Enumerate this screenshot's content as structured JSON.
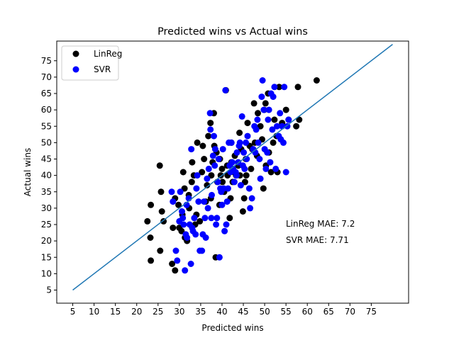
{
  "chart_data": {
    "type": "scatter",
    "title": "Predicted wins vs Actual wins",
    "xlabel": "Predicted wins",
    "ylabel": "Actual wins",
    "xlim": [
      1.25,
      83.75
    ],
    "ylim": [
      1.0,
      81.0
    ],
    "xticks": [
      5,
      10,
      15,
      20,
      25,
      30,
      35,
      40,
      45,
      50,
      55,
      60,
      65,
      70,
      75
    ],
    "yticks": [
      5,
      10,
      15,
      20,
      25,
      30,
      35,
      40,
      45,
      50,
      55,
      60,
      65,
      70,
      75
    ],
    "legend": {
      "position": "top-left",
      "entries": [
        "LinReg",
        "SVR"
      ]
    },
    "reference_line": {
      "x": [
        5,
        80
      ],
      "y": [
        5,
        80
      ],
      "color": "#1f77b4"
    },
    "annotations": [
      "LinReg MAE: 7.2",
      "SVR MAE: 7.71"
    ],
    "series": [
      {
        "name": "LinReg",
        "color": "#000000",
        "points": [
          [
            22.5,
            26
          ],
          [
            23.3,
            31
          ],
          [
            23.2,
            21
          ],
          [
            23.3,
            14
          ],
          [
            25.4,
            43
          ],
          [
            25.7,
            35
          ],
          [
            25.9,
            29
          ],
          [
            25.5,
            17
          ],
          [
            26.3,
            26
          ],
          [
            28.5,
            24
          ],
          [
            29,
            11
          ],
          [
            28.3,
            13
          ],
          [
            29,
            33
          ],
          [
            29.8,
            31
          ],
          [
            30,
            24
          ],
          [
            30.5,
            23
          ],
          [
            30.7,
            28
          ],
          [
            30.9,
            41
          ],
          [
            31.2,
            36
          ],
          [
            31.3,
            21
          ],
          [
            31.8,
            20
          ],
          [
            32.2,
            34
          ],
          [
            32.3,
            30
          ],
          [
            32.9,
            38
          ],
          [
            33,
            44
          ],
          [
            33.4,
            40
          ],
          [
            33.7,
            25
          ],
          [
            34,
            28
          ],
          [
            34.2,
            50
          ],
          [
            34.8,
            26
          ],
          [
            35.3,
            41
          ],
          [
            35.5,
            49
          ],
          [
            35.8,
            45
          ],
          [
            36.2,
            32
          ],
          [
            36.5,
            37
          ],
          [
            36.8,
            52
          ],
          [
            37.3,
            56
          ],
          [
            37.4,
            33
          ],
          [
            37.5,
            40
          ],
          [
            37.8,
            44
          ],
          [
            38.1,
            59
          ],
          [
            38.2,
            49
          ],
          [
            38.5,
            15
          ],
          [
            38.7,
            47
          ],
          [
            38.9,
            38
          ],
          [
            39.4,
            31
          ],
          [
            39.5,
            45
          ],
          [
            39.7,
            40
          ],
          [
            40,
            42
          ],
          [
            40.1,
            38
          ],
          [
            40.5,
            35
          ],
          [
            40.9,
            66
          ],
          [
            41.2,
            43
          ],
          [
            41.3,
            40
          ],
          [
            41.8,
            27
          ],
          [
            42,
            33
          ],
          [
            42.2,
            50
          ],
          [
            42.2,
            44
          ],
          [
            42.5,
            38
          ],
          [
            42.8,
            41
          ],
          [
            43,
            46
          ],
          [
            43.3,
            40
          ],
          [
            43.8,
            43
          ],
          [
            44.1,
            53
          ],
          [
            44.2,
            40
          ],
          [
            44.5,
            48
          ],
          [
            44.9,
            29
          ],
          [
            45.2,
            33
          ],
          [
            45.4,
            38
          ],
          [
            45.6,
            45
          ],
          [
            45.7,
            40
          ],
          [
            46,
            56
          ],
          [
            46.5,
            49
          ],
          [
            46.8,
            42
          ],
          [
            47.1,
            48
          ],
          [
            47.5,
            62
          ],
          [
            47.7,
            50
          ],
          [
            48.2,
            46
          ],
          [
            48.4,
            59
          ],
          [
            49,
            55
          ],
          [
            49.4,
            51
          ],
          [
            49.7,
            36
          ],
          [
            49.9,
            60
          ],
          [
            50.2,
            62
          ],
          [
            50.3,
            43
          ],
          [
            50.8,
            65
          ],
          [
            51,
            47
          ],
          [
            51.5,
            41
          ],
          [
            52,
            50
          ],
          [
            52.3,
            57
          ],
          [
            52.8,
            52
          ],
          [
            53,
            41
          ],
          [
            53.4,
            67
          ],
          [
            54.1,
            56
          ],
          [
            55,
            60
          ],
          [
            55.6,
            57
          ],
          [
            57.4,
            55
          ],
          [
            57.8,
            67
          ],
          [
            58.1,
            57
          ],
          [
            62.2,
            69
          ]
        ]
      },
      {
        "name": "SVR",
        "color": "#0000ff",
        "points": [
          [
            28.2,
            35
          ],
          [
            28.5,
            32
          ],
          [
            29.2,
            17
          ],
          [
            29.5,
            14
          ],
          [
            30,
            26
          ],
          [
            30.2,
            35
          ],
          [
            30.6,
            29
          ],
          [
            30.8,
            27
          ],
          [
            31,
            25
          ],
          [
            31.3,
            11
          ],
          [
            31.5,
            22
          ],
          [
            31.7,
            31
          ],
          [
            31.8,
            21
          ],
          [
            32.2,
            33
          ],
          [
            32.4,
            25
          ],
          [
            32.7,
            13
          ],
          [
            32.8,
            48
          ],
          [
            33,
            24
          ],
          [
            33.2,
            23
          ],
          [
            33.5,
            27
          ],
          [
            33.8,
            22
          ],
          [
            34,
            36
          ],
          [
            34.2,
            40
          ],
          [
            34.5,
            32
          ],
          [
            34.8,
            17
          ],
          [
            35.3,
            17
          ],
          [
            35.5,
            22
          ],
          [
            35.8,
            32
          ],
          [
            36,
            27
          ],
          [
            36.2,
            21
          ],
          [
            36.5,
            39
          ],
          [
            36.7,
            30
          ],
          [
            36.9,
            42
          ],
          [
            37.2,
            59
          ],
          [
            37.3,
            54
          ],
          [
            37.5,
            27
          ],
          [
            37.6,
            34
          ],
          [
            37.9,
            46
          ],
          [
            38.1,
            52
          ],
          [
            38.3,
            43
          ],
          [
            38.4,
            48
          ],
          [
            38.6,
            25
          ],
          [
            38.8,
            27
          ],
          [
            39,
            38
          ],
          [
            39.2,
            45
          ],
          [
            39.4,
            15
          ],
          [
            39.6,
            36
          ],
          [
            39.8,
            35
          ],
          [
            40,
            31
          ],
          [
            40.2,
            48
          ],
          [
            40.4,
            36
          ],
          [
            40.6,
            23
          ],
          [
            40.8,
            66
          ],
          [
            41,
            25
          ],
          [
            41.2,
            32
          ],
          [
            41.4,
            36
          ],
          [
            41.6,
            50
          ],
          [
            41.8,
            43
          ],
          [
            42,
            41
          ],
          [
            42.2,
            50
          ],
          [
            42.4,
            44
          ],
          [
            42.6,
            42
          ],
          [
            42.9,
            38
          ],
          [
            43.2,
            41
          ],
          [
            43.4,
            40
          ],
          [
            43.5,
            47
          ],
          [
            43.8,
            44
          ],
          [
            44,
            49
          ],
          [
            44.2,
            50
          ],
          [
            44.4,
            37
          ],
          [
            44.7,
            58
          ],
          [
            44.9,
            43
          ],
          [
            45.1,
            47
          ],
          [
            45.3,
            42
          ],
          [
            45.6,
            50
          ],
          [
            45.8,
            45
          ],
          [
            46,
            52
          ],
          [
            46.4,
            36
          ],
          [
            46.6,
            30
          ],
          [
            47,
            33
          ],
          [
            47.3,
            48
          ],
          [
            47.6,
            55
          ],
          [
            47.8,
            47
          ],
          [
            48,
            54
          ],
          [
            48.3,
            57
          ],
          [
            48.5,
            50
          ],
          [
            48.8,
            45
          ],
          [
            49,
            39
          ],
          [
            49.3,
            64
          ],
          [
            49.5,
            69
          ],
          [
            49.8,
            60
          ],
          [
            50,
            48
          ],
          [
            50.3,
            42
          ],
          [
            50.6,
            47
          ],
          [
            50.8,
            57
          ],
          [
            51,
            60
          ],
          [
            51.3,
            44
          ],
          [
            51.5,
            65
          ],
          [
            51.8,
            54
          ],
          [
            52,
            64
          ],
          [
            52.3,
            67
          ],
          [
            52.6,
            42
          ],
          [
            52.9,
            55
          ],
          [
            53.3,
            52
          ],
          [
            53.6,
            59
          ],
          [
            53.8,
            51
          ],
          [
            54.1,
            55
          ],
          [
            54.4,
            50
          ],
          [
            54.6,
            67
          ],
          [
            55,
            41
          ],
          [
            55.3,
            55
          ],
          [
            55.6,
            57
          ]
        ]
      }
    ]
  }
}
